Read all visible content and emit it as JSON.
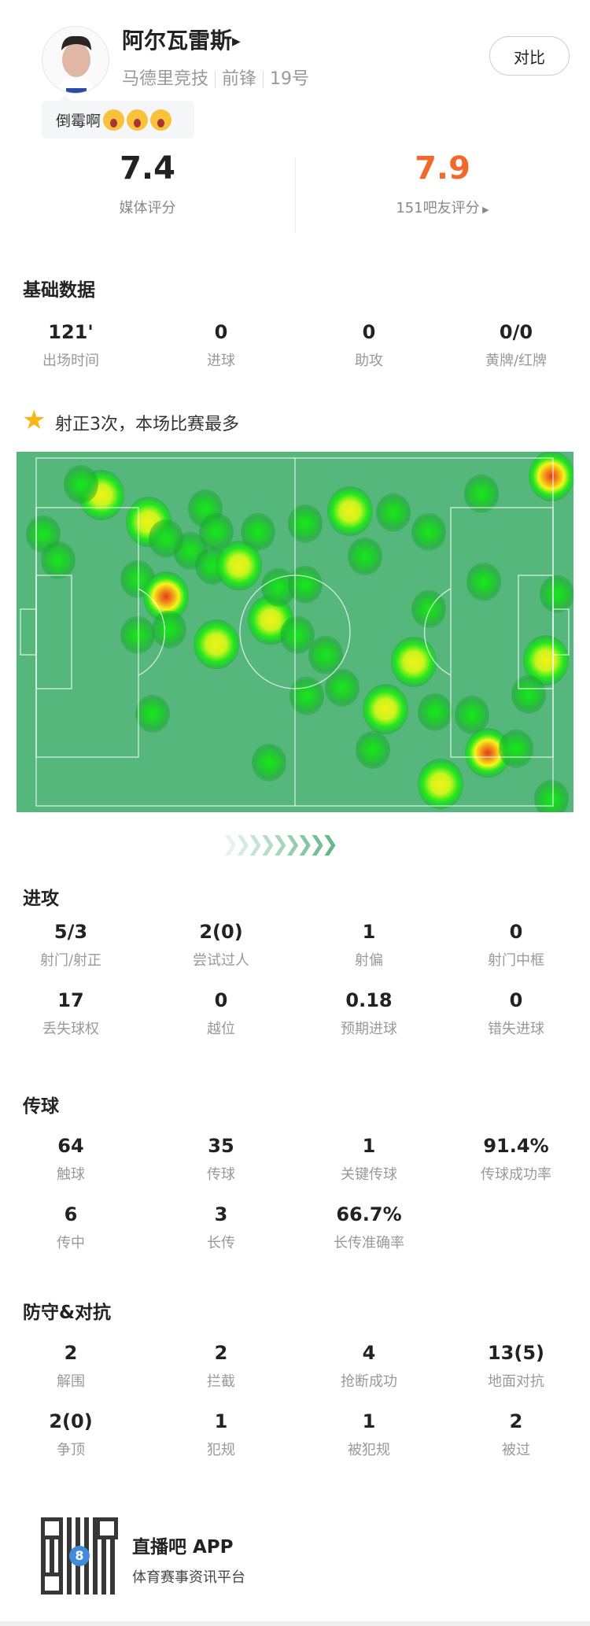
{
  "player": {
    "name": "阿尔瓦雷斯",
    "team": "马德里竞技",
    "position": "前锋",
    "number": "19号",
    "compare_label": "对比",
    "comment": "倒霉啊",
    "comment_emoji": "loudly-crying-face ×3"
  },
  "ratings": {
    "media_value": "7.4",
    "media_label": "媒体评分",
    "fan_value": "7.9",
    "fan_label": "151吧友评分",
    "fan_color": "#f26a2b"
  },
  "basic": {
    "title": "基础数据",
    "items": [
      {
        "v": "121'",
        "l": "出场时间"
      },
      {
        "v": "0",
        "l": "进球"
      },
      {
        "v": "0",
        "l": "助攻"
      },
      {
        "v": "0/0",
        "l": "黄牌/红牌"
      }
    ]
  },
  "highlight": {
    "icon": "star-icon",
    "text": "射正3次，本场比赛最多"
  },
  "attack": {
    "title": "进攻",
    "items": [
      {
        "v": "5/3",
        "l": "射门/射正"
      },
      {
        "v": "2(0)",
        "l": "尝试过人"
      },
      {
        "v": "1",
        "l": "射偏"
      },
      {
        "v": "0",
        "l": "射门中框"
      },
      {
        "v": "17",
        "l": "丢失球权"
      },
      {
        "v": "0",
        "l": "越位"
      },
      {
        "v": "0.18",
        "l": "预期进球"
      },
      {
        "v": "0",
        "l": "错失进球"
      }
    ]
  },
  "passing": {
    "title": "传球",
    "items": [
      {
        "v": "64",
        "l": "触球"
      },
      {
        "v": "35",
        "l": "传球"
      },
      {
        "v": "1",
        "l": "关键传球"
      },
      {
        "v": "91.4%",
        "l": "传球成功率"
      },
      {
        "v": "6",
        "l": "传中"
      },
      {
        "v": "3",
        "l": "长传"
      },
      {
        "v": "66.7%",
        "l": "长传准确率"
      }
    ]
  },
  "defense": {
    "title": "防守&对抗",
    "items": [
      {
        "v": "2",
        "l": "解围"
      },
      {
        "v": "2",
        "l": "拦截"
      },
      {
        "v": "4",
        "l": "抢断成功"
      },
      {
        "v": "13(5)",
        "l": "地面对抗"
      },
      {
        "v": "2(0)",
        "l": "争顶"
      },
      {
        "v": "1",
        "l": "犯规"
      },
      {
        "v": "1",
        "l": "被犯规"
      },
      {
        "v": "2",
        "l": "被过"
      }
    ]
  },
  "footer": {
    "app_name": "直播吧 APP",
    "app_sub": "体育赛事资讯平台"
  },
  "colors": {
    "pitch": "#55b77c",
    "accent": "#5cb583"
  }
}
